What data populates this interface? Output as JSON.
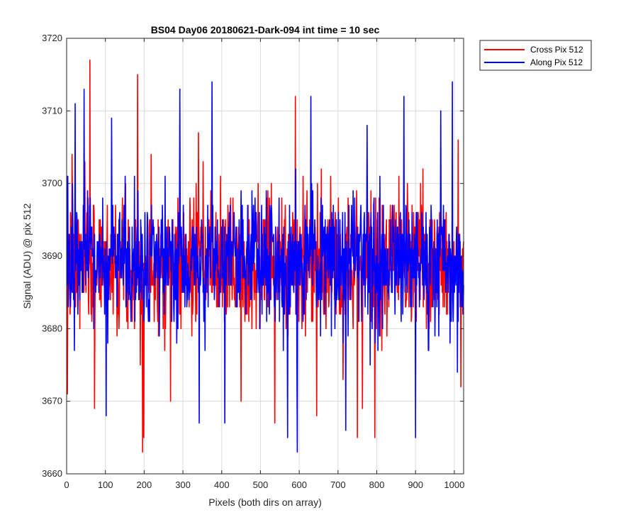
{
  "chart_data": {
    "type": "line",
    "title": "BS04 Day06 20180621-Dark-094 int time = 10 sec",
    "xlabel": "Pixels (both dirs on array)",
    "ylabel": "Signal (ADU) @ pix 512",
    "xlim": [
      0,
      1024
    ],
    "ylim": [
      3660,
      3720
    ],
    "xticks": [
      0,
      100,
      200,
      300,
      400,
      500,
      600,
      700,
      800,
      900,
      1000
    ],
    "yticks": [
      3660,
      3670,
      3680,
      3690,
      3700,
      3710,
      3720
    ],
    "grid": true,
    "legend_position": "outside-top-right",
    "series_style": "dense noisy trace, one sample per pixel (x = 1..1024), mean about 3689, extremes listed below",
    "series": [
      {
        "name": "Cross Pix 512",
        "color": "#ff0000",
        "length": 1024,
        "mean": 3689,
        "spread": 4.5,
        "seed": 7,
        "extremes": [
          {
            "x": 2,
            "y": 3671
          },
          {
            "x": 14,
            "y": 3704
          },
          {
            "x": 60,
            "y": 3717
          },
          {
            "x": 72,
            "y": 3669
          },
          {
            "x": 183,
            "y": 3715
          },
          {
            "x": 196,
            "y": 3663
          },
          {
            "x": 199,
            "y": 3665
          },
          {
            "x": 268,
            "y": 3670
          },
          {
            "x": 340,
            "y": 3707
          },
          {
            "x": 450,
            "y": 3670
          },
          {
            "x": 537,
            "y": 3667
          },
          {
            "x": 590,
            "y": 3712
          },
          {
            "x": 645,
            "y": 3668
          },
          {
            "x": 750,
            "y": 3665
          },
          {
            "x": 763,
            "y": 3669
          },
          {
            "x": 795,
            "y": 3665
          },
          {
            "x": 1010,
            "y": 3706
          },
          {
            "x": 1017,
            "y": 3672
          }
        ]
      },
      {
        "name": "Along Pix 512",
        "color": "#0000ff",
        "length": 1024,
        "mean": 3689,
        "spread": 4.5,
        "seed": 13,
        "extremes": [
          {
            "x": 2,
            "y": 3699
          },
          {
            "x": 22,
            "y": 3711
          },
          {
            "x": 45,
            "y": 3713
          },
          {
            "x": 102,
            "y": 3668
          },
          {
            "x": 116,
            "y": 3709
          },
          {
            "x": 292,
            "y": 3713
          },
          {
            "x": 342,
            "y": 3667
          },
          {
            "x": 375,
            "y": 3714
          },
          {
            "x": 408,
            "y": 3667
          },
          {
            "x": 570,
            "y": 3665
          },
          {
            "x": 595,
            "y": 3663
          },
          {
            "x": 630,
            "y": 3712
          },
          {
            "x": 720,
            "y": 3666
          },
          {
            "x": 775,
            "y": 3708
          },
          {
            "x": 870,
            "y": 3712
          },
          {
            "x": 900,
            "y": 3665
          },
          {
            "x": 965,
            "y": 3710
          },
          {
            "x": 995,
            "y": 3714
          },
          {
            "x": 1008,
            "y": 3674
          }
        ]
      }
    ]
  }
}
